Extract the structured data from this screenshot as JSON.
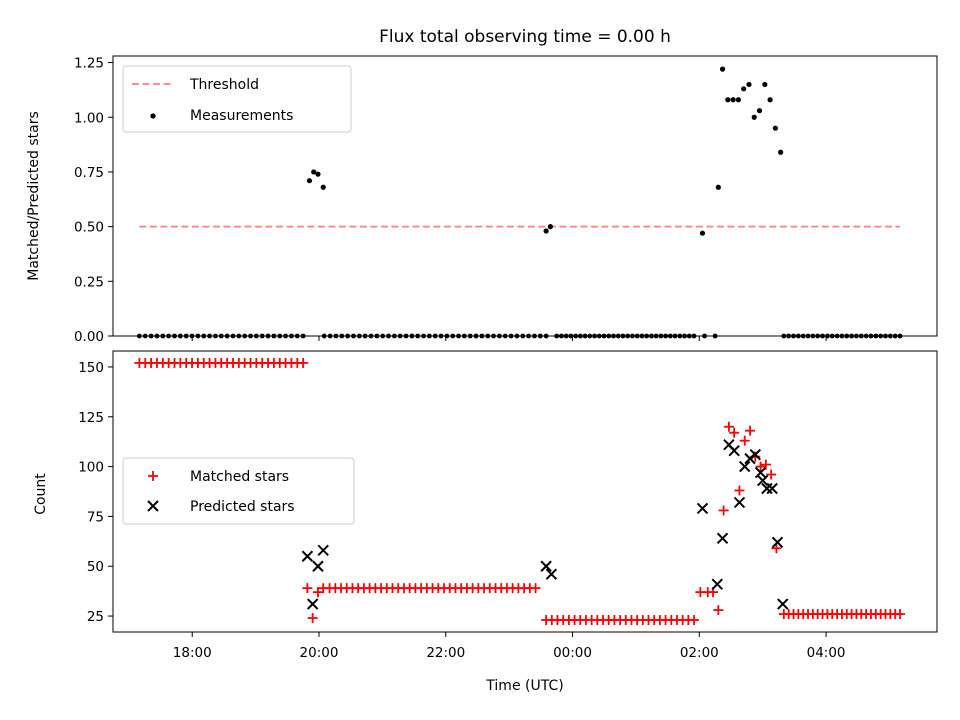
{
  "chart_data": [
    {
      "type": "scatter",
      "title": "Flux total observing time = 0.00 h",
      "xlabel": "",
      "ylabel": "Matched/Predicted stars",
      "xlim": [
        "16:45",
        "05:45"
      ],
      "ylim": [
        0,
        1.28
      ],
      "yticks": [
        "0.00",
        "0.25",
        "0.50",
        "0.75",
        "1.00",
        "1.25"
      ],
      "xticks": [
        "18:00",
        "20:00",
        "22:00",
        "00:00",
        "02:00",
        "04:00"
      ],
      "legend_position": "upper-left",
      "threshold": {
        "name": "Threshold",
        "value": 0.5,
        "x_start": "17:10",
        "x_end": "05:10",
        "color": "#ff7f7f",
        "style": "dashed"
      },
      "series": [
        {
          "name": "Measurements",
          "color": "#000000",
          "marker": "dot",
          "zero_runs": [
            {
              "from": "17:10",
              "to": "19:45",
              "count": 29
            },
            {
              "from": "20:05",
              "to": "23:35",
              "count": 39
            },
            {
              "from": "23:45",
              "to": "01:55",
              "count": 30
            },
            {
              "from": "02:05",
              "to": "02:15",
              "count": 2
            },
            {
              "from": "03:20",
              "to": "05:10",
              "count": 25
            }
          ],
          "points": [
            {
              "x": "19:51",
              "y": 0.71
            },
            {
              "x": "19:55",
              "y": 0.75
            },
            {
              "x": "19:59",
              "y": 0.74
            },
            {
              "x": "20:04",
              "y": 0.68
            },
            {
              "x": "23:35",
              "y": 0.48
            },
            {
              "x": "23:39",
              "y": 0.5
            },
            {
              "x": "02:03",
              "y": 0.47
            },
            {
              "x": "02:18",
              "y": 0.68
            },
            {
              "x": "02:22",
              "y": 1.22
            },
            {
              "x": "02:27",
              "y": 1.08
            },
            {
              "x": "02:32",
              "y": 1.08
            },
            {
              "x": "02:37",
              "y": 1.08
            },
            {
              "x": "02:42",
              "y": 1.13
            },
            {
              "x": "02:47",
              "y": 1.15
            },
            {
              "x": "02:52",
              "y": 1.0
            },
            {
              "x": "02:57",
              "y": 1.03
            },
            {
              "x": "03:02",
              "y": 1.15
            },
            {
              "x": "03:07",
              "y": 1.08
            },
            {
              "x": "03:12",
              "y": 0.95
            },
            {
              "x": "03:17",
              "y": 0.84
            }
          ]
        }
      ]
    },
    {
      "type": "scatter",
      "title": "",
      "xlabel": "Time (UTC)",
      "ylabel": "Count",
      "xlim": [
        "16:45",
        "05:45"
      ],
      "ylim": [
        17,
        158
      ],
      "yticks": [
        "25",
        "50",
        "75",
        "100",
        "125",
        "150"
      ],
      "xticks": [
        "18:00",
        "20:00",
        "22:00",
        "00:00",
        "02:00",
        "04:00"
      ],
      "legend_position": "center-left",
      "series": [
        {
          "name": "Matched stars",
          "color": "#ff0000",
          "marker": "plus",
          "runs": [
            {
              "from": "17:10",
              "to": "19:45",
              "count": 29,
              "y": 152
            },
            {
              "from": "20:10",
              "to": "23:25",
              "count": 37,
              "y": 39
            },
            {
              "from": "23:35",
              "to": "01:55",
              "count": 27,
              "y": 23
            },
            {
              "from": "03:20",
              "to": "05:10",
              "count": 25,
              "y": 26
            }
          ],
          "points": [
            {
              "x": "19:49",
              "y": 39
            },
            {
              "x": "19:54",
              "y": 24
            },
            {
              "x": "19:59",
              "y": 37
            },
            {
              "x": "20:04",
              "y": 39
            },
            {
              "x": "02:01",
              "y": 37
            },
            {
              "x": "02:08",
              "y": 37
            },
            {
              "x": "02:13",
              "y": 37
            },
            {
              "x": "02:18",
              "y": 28
            },
            {
              "x": "02:23",
              "y": 78
            },
            {
              "x": "02:28",
              "y": 120
            },
            {
              "x": "02:33",
              "y": 117
            },
            {
              "x": "02:38",
              "y": 88
            },
            {
              "x": "02:43",
              "y": 113
            },
            {
              "x": "02:48",
              "y": 118
            },
            {
              "x": "02:53",
              "y": 105
            },
            {
              "x": "02:58",
              "y": 100
            },
            {
              "x": "03:03",
              "y": 101
            },
            {
              "x": "03:08",
              "y": 96
            },
            {
              "x": "03:13",
              "y": 59
            }
          ]
        },
        {
          "name": "Predicted stars",
          "color": "#000000",
          "marker": "x",
          "points": [
            {
              "x": "19:49",
              "y": 55
            },
            {
              "x": "19:54",
              "y": 31
            },
            {
              "x": "19:59",
              "y": 50
            },
            {
              "x": "20:04",
              "y": 58
            },
            {
              "x": "23:35",
              "y": 50
            },
            {
              "x": "23:40",
              "y": 46
            },
            {
              "x": "02:03",
              "y": 79
            },
            {
              "x": "02:17",
              "y": 41
            },
            {
              "x": "02:22",
              "y": 64
            },
            {
              "x": "02:28",
              "y": 111
            },
            {
              "x": "02:33",
              "y": 108
            },
            {
              "x": "02:38",
              "y": 82
            },
            {
              "x": "02:43",
              "y": 100
            },
            {
              "x": "02:48",
              "y": 104
            },
            {
              "x": "02:53",
              "y": 106
            },
            {
              "x": "02:58",
              "y": 97
            },
            {
              "x": "03:00",
              "y": 93
            },
            {
              "x": "03:04",
              "y": 89
            },
            {
              "x": "03:09",
              "y": 89
            },
            {
              "x": "03:14",
              "y": 62
            },
            {
              "x": "03:19",
              "y": 31
            }
          ]
        }
      ]
    }
  ]
}
